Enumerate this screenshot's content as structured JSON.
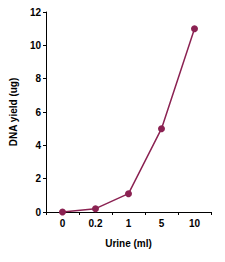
{
  "chart_data": {
    "type": "line",
    "x_label": "Urine (ml)",
    "y_label": "DNA yield (ug)",
    "categories": [
      "0",
      "0.2",
      "1",
      "5",
      "10"
    ],
    "values": [
      0,
      0.2,
      1.1,
      5,
      11
    ],
    "color": "#8b2252",
    "marker": "circle",
    "line_style": "solid",
    "ylim": [
      0,
      12
    ],
    "yticks": [
      0,
      2,
      4,
      6,
      8,
      10,
      12
    ],
    "grid": false
  }
}
